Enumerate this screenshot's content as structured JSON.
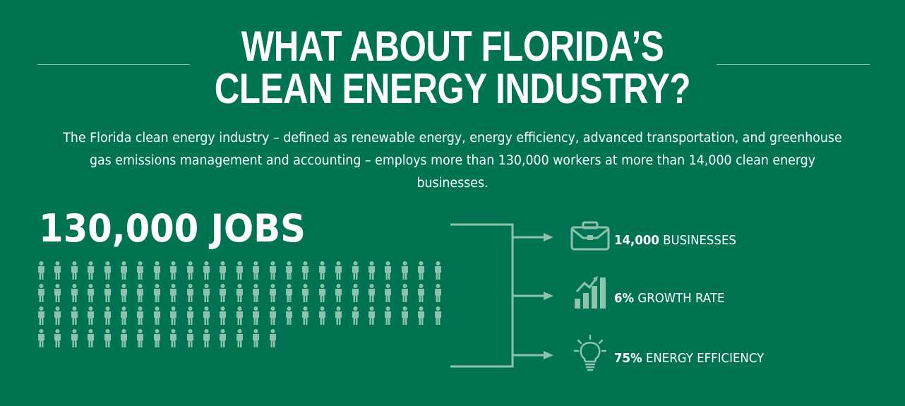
{
  "header": {
    "title_line1": "WHAT ABOUT FLORIDA’S",
    "title_line2": "CLEAN ENERGY INDUSTRY?"
  },
  "intro": {
    "text": "The Florida clean energy industry – defined as renewable energy, energy efficiency, advanced transportation, and greenhouse gas emissions management and accounting – employs more than 130,000 workers at more than 14,000 clean energy businesses."
  },
  "jobs": {
    "headline": "130,000 JOBS",
    "icon": "person-icon",
    "rows": [
      25,
      25,
      25,
      15
    ]
  },
  "stats": [
    {
      "icon": "briefcase-icon",
      "value": "14,000",
      "label": "BUSINESSES"
    },
    {
      "icon": "bar-chart-growth-icon",
      "value": "6%",
      "label": "GROWTH RATE"
    },
    {
      "icon": "lightbulb-icon",
      "value": "75%",
      "label": "ENERGY EFFICIENCY"
    }
  ],
  "colors": {
    "background": "#007452",
    "icon_tint": "#8fc2ad",
    "text": "#ffffff"
  }
}
